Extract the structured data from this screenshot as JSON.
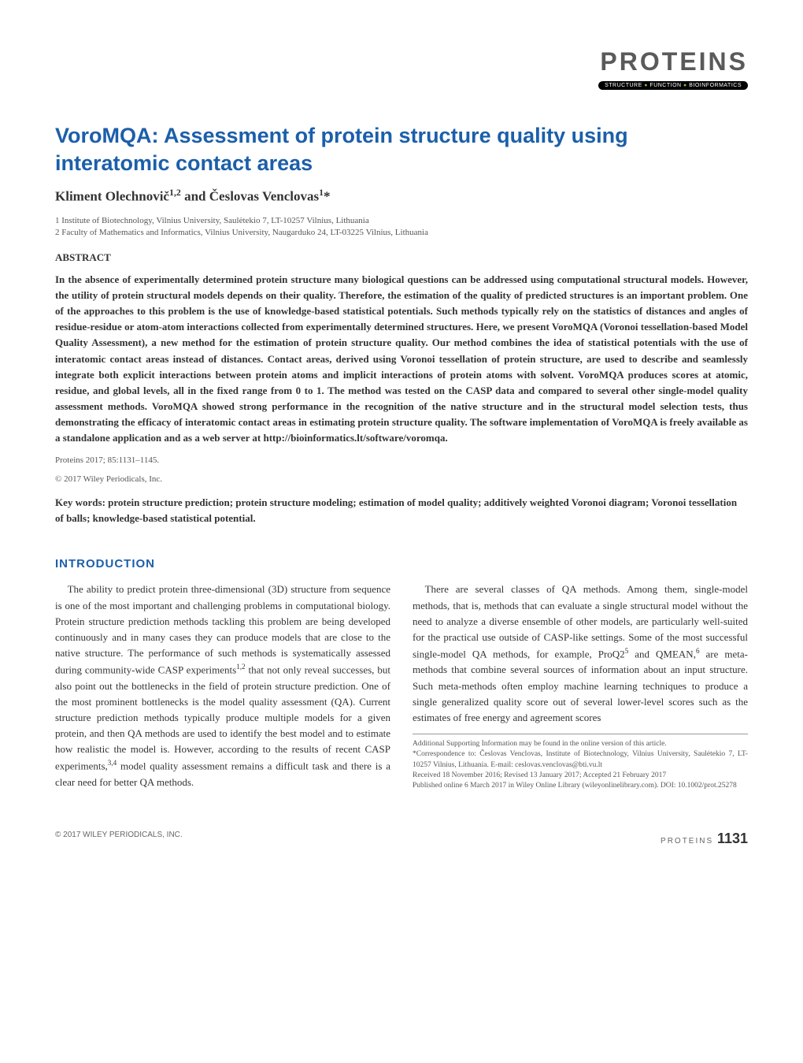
{
  "journal": {
    "logo": "PROTEINS",
    "tagline_parts": [
      "STRUCTURE",
      "FUNCTION",
      "BIOINFORMATICS"
    ]
  },
  "article": {
    "title": "VoroMQA: Assessment of protein structure quality using interatomic contact areas",
    "authors": "Kliment Olechnovič1,2 and Česlovas Venclovas1*",
    "affiliations": [
      "1 Institute of Biotechnology, Vilnius University, Saulėtekio 7, LT-10257 Vilnius, Lithuania",
      "2 Faculty of Mathematics and Informatics, Vilnius University, Naugarduko 24, LT-03225 Vilnius, Lithuania"
    ],
    "abstract_heading": "ABSTRACT",
    "abstract": "In the absence of experimentally determined protein structure many biological questions can be addressed using computational structural models. However, the utility of protein structural models depends on their quality. Therefore, the estimation of the quality of predicted structures is an important problem. One of the approaches to this problem is the use of knowledge-based statistical potentials. Such methods typically rely on the statistics of distances and angles of residue-residue or atom-atom interactions collected from experimentally determined structures. Here, we present VoroMQA (Voronoi tessellation-based Model Quality Assessment), a new method for the estimation of protein structure quality. Our method combines the idea of statistical potentials with the use of interatomic contact areas instead of distances. Contact areas, derived using Voronoi tessellation of protein structure, are used to describe and seamlessly integrate both explicit interactions between protein atoms and implicit interactions of protein atoms with solvent. VoroMQA produces scores at atomic, residue, and global levels, all in the fixed range from 0 to 1. The method was tested on the CASP data and compared to several other single-model quality assessment methods. VoroMQA showed strong performance in the recognition of the native structure and in the structural model selection tests, thus demonstrating the efficacy of interatomic contact areas in estimating protein structure quality. The software implementation of VoroMQA is freely available as a standalone application and as a web server at http://bioinformatics.lt/software/voromqa.",
    "citation_line1": "Proteins 2017; 85:1131–1145.",
    "citation_line2": "© 2017 Wiley Periodicals, Inc.",
    "keywords": "Key words: protein structure prediction; protein structure modeling; estimation of model quality; additively weighted Voronoi diagram; Voronoi tessellation of balls; knowledge-based statistical potential."
  },
  "sections": {
    "intro_heading": "INTRODUCTION",
    "intro_col1": "The ability to predict protein three-dimensional (3D) structure from sequence is one of the most important and challenging problems in computational biology. Protein structure prediction methods tackling this problem are being developed continuously and in many cases they can produce models that are close to the native structure. The performance of such methods is systematically assessed during community-wide CASP experiments1,2 that not only reveal successes, but also point out the bottlenecks in the field of protein structure prediction. One of the most prominent bottlenecks is the model quality assessment (QA). Current structure prediction methods typically produce multiple models for a given protein, and then QA methods are used to identify the best model and to estimate how realistic the model is. However, according to the results of recent CASP experiments,3,4 model quality assessment remains a difficult task and there is a clear need for better QA methods.",
    "intro_col2": "There are several classes of QA methods. Among them, single-model methods, that is, methods that can evaluate a single structural model without the need to analyze a diverse ensemble of other models, are particularly well-suited for the practical use outside of CASP-like settings. Some of the most successful single-model QA methods, for example, ProQ25 and QMEAN,6 are meta-methods that combine several sources of information about an input structure. Such meta-methods often employ machine learning techniques to produce a single generalized quality score out of several lower-level scores such as the estimates of free energy and agreement scores"
  },
  "footnotes": {
    "line1": "Additional Supporting Information may be found in the online version of this article.",
    "line2": "*Correspondence to: Česlovas Venclovas, Institute of Biotechnology, Vilnius University, Saulėtekio 7, LT-10257 Vilnius, Lithuania. E-mail: ceslovas.venclovas@bti.vu.lt",
    "line3": "Received 18 November 2016; Revised 13 January 2017; Accepted 21 February 2017",
    "line4": "Published online 6 March 2017 in Wiley Online Library (wileyonlinelibrary.com). DOI: 10.1002/prot.25278"
  },
  "footer": {
    "left": "© 2017 WILEY PERIODICALS, INC.",
    "right_label": "PROTEINS",
    "page": "1131"
  },
  "styles": {
    "title_color": "#1b5faa",
    "heading_color": "#1b5faa",
    "body_color": "#333333",
    "affil_color": "#555555",
    "title_fontsize": 27,
    "body_fontsize": 13,
    "footnote_fontsize": 9.5,
    "background": "#ffffff"
  }
}
